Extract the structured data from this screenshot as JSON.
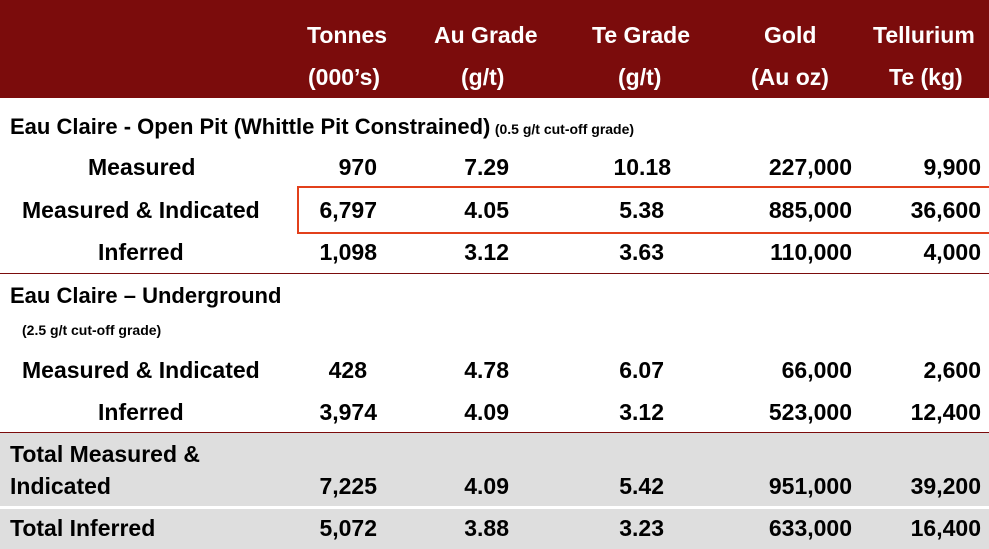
{
  "header": {
    "columns": [
      {
        "line1": "Tonnes",
        "line2": "(000’s)"
      },
      {
        "line1": "Au Grade",
        "line2": "(g/t)"
      },
      {
        "line1": "Te Grade",
        "line2": "(g/t)"
      },
      {
        "line1": "Gold",
        "line2": "(Au oz)"
      },
      {
        "line1": "Tellurium",
        "line2": "Te (kg)"
      }
    ]
  },
  "open_pit": {
    "title": "Eau Claire - Open Pit (Whittle Pit Constrained)",
    "note": "(0.5 g/t cut-off grade)",
    "rows": [
      {
        "label": "Measured",
        "values": [
          "970",
          "7.29",
          "10.18",
          "227,000",
          "9,900"
        ]
      },
      {
        "label": "Measured & Indicated",
        "values": [
          "6,797",
          "4.05",
          "5.38",
          "885,000",
          "36,600"
        ]
      },
      {
        "label": "Inferred",
        "values": [
          "1,098",
          "3.12",
          "3.63",
          "110,000",
          "4,000"
        ]
      }
    ]
  },
  "underground": {
    "title": "Eau Claire – Underground",
    "note": "(2.5 g/t cut-off grade)",
    "rows": [
      {
        "label": "Measured & Indicated",
        "values": [
          "428",
          "4.78",
          "6.07",
          "66,000",
          "2,600"
        ]
      },
      {
        "label": "Inferred",
        "values": [
          "3,974",
          "4.09",
          "3.12",
          "523,000",
          "12,400"
        ]
      }
    ]
  },
  "totals": [
    {
      "label_line1": "Total Measured &",
      "label_line2": "Indicated",
      "values": [
        "7,225",
        "4.09",
        "5.42",
        "951,000",
        "39,200"
      ]
    },
    {
      "label_line1": "Total Inferred",
      "label_line2": "",
      "values": [
        "5,072",
        "3.88",
        "3.23",
        "633,000",
        "16,400"
      ]
    }
  ],
  "colors": {
    "header_bg": "#7b0c0c",
    "total_bg": "#dedede",
    "highlight_border": "#e2401b"
  }
}
